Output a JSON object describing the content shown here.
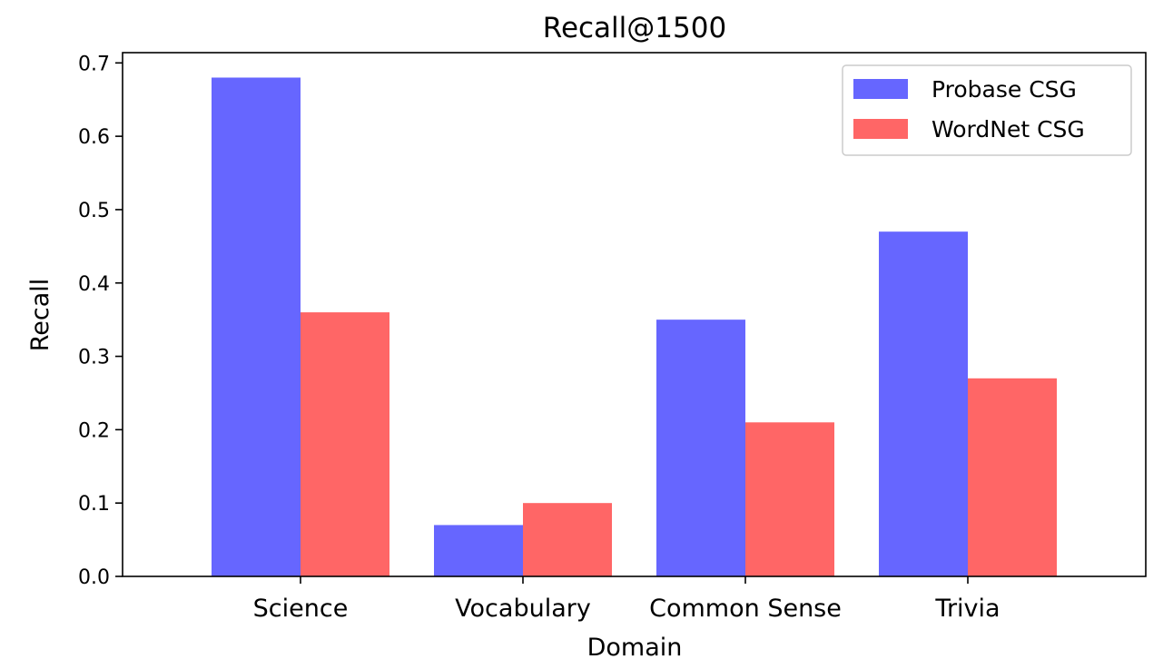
{
  "chart_data": {
    "type": "bar",
    "title": "Recall@1500",
    "xlabel": "Domain",
    "ylabel": "Recall",
    "categories": [
      "Science",
      "Vocabulary",
      "Common Sense",
      "Trivia"
    ],
    "series": [
      {
        "name": "Probase CSG",
        "color": "#6666ff",
        "values": [
          0.68,
          0.07,
          0.35,
          0.47
        ]
      },
      {
        "name": "WordNet CSG",
        "color": "#ff6666",
        "values": [
          0.36,
          0.1,
          0.21,
          0.27
        ]
      }
    ],
    "ylim": [
      0,
      0.714
    ],
    "yticks": [
      "0.0",
      "0.1",
      "0.2",
      "0.3",
      "0.4",
      "0.5",
      "0.6",
      "0.7"
    ],
    "grid": false,
    "legend_position": "top-right"
  }
}
